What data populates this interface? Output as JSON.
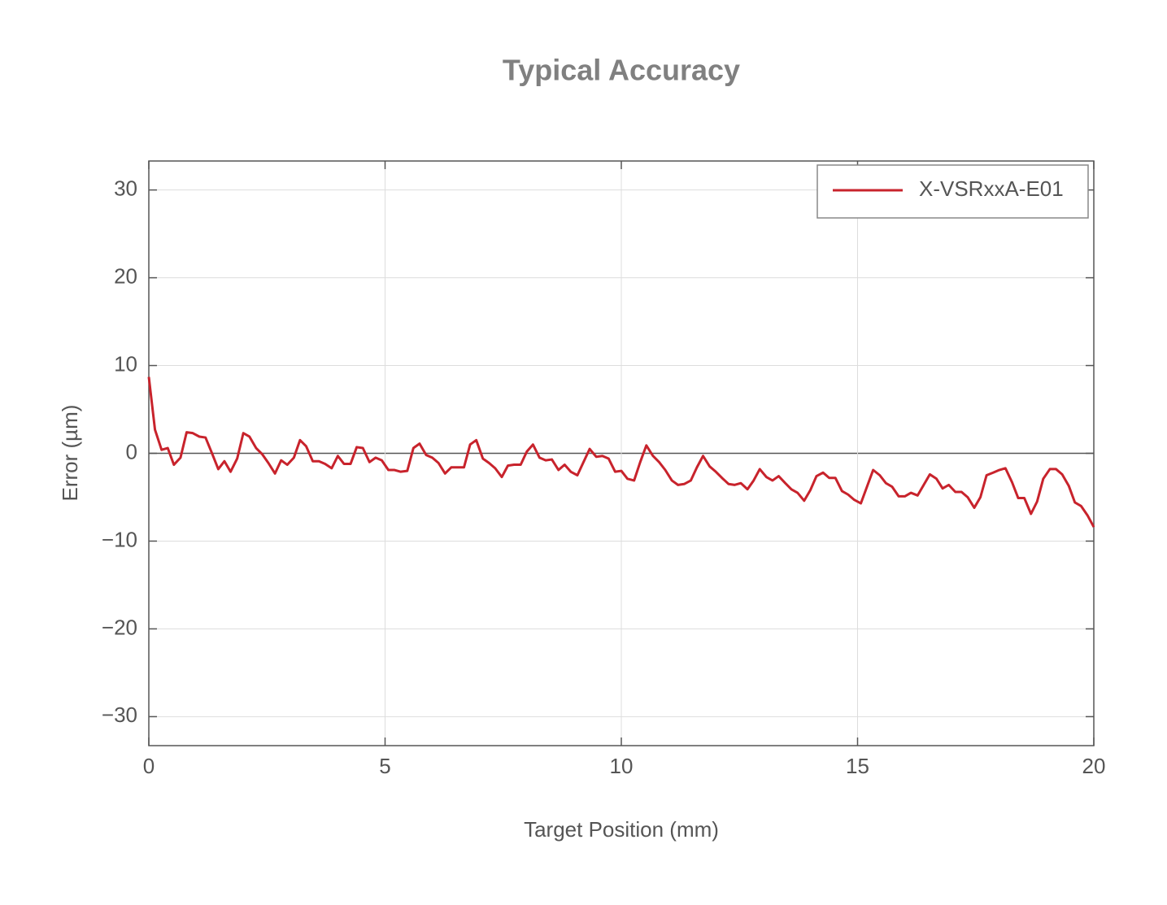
{
  "chart_data": {
    "type": "line",
    "title": "Typical Accuracy",
    "x_label": "Target Position (mm)",
    "y_label": "Error (µm)",
    "xlim": [
      0,
      20
    ],
    "xticks": [
      0,
      5,
      10,
      15,
      20
    ],
    "ylim": [
      -33.3,
      33.3
    ],
    "yticks": [
      {
        "value": -30,
        "label": "−30"
      },
      {
        "value": -20,
        "label": "−20"
      },
      {
        "value": -10,
        "label": "−10"
      },
      0,
      10,
      20,
      30
    ],
    "grid": true,
    "legend": "upper right",
    "x": [
      0,
      0.13,
      0.27,
      0.4,
      0.53,
      0.67,
      0.8,
      0.93,
      1.07,
      1.2,
      1.33,
      1.47,
      1.6,
      1.73,
      1.87,
      2,
      2.13,
      2.27,
      2.4,
      2.53,
      2.67,
      2.8,
      2.93,
      3.07,
      3.2,
      3.33,
      3.47,
      3.6,
      3.73,
      3.87,
      4,
      4.13,
      4.27,
      4.4,
      4.53,
      4.67,
      4.8,
      4.93,
      5.07,
      5.2,
      5.33,
      5.47,
      5.6,
      5.73,
      5.87,
      6,
      6.13,
      6.27,
      6.4,
      6.53,
      6.67,
      6.8,
      6.93,
      7.07,
      7.2,
      7.33,
      7.47,
      7.6,
      7.73,
      7.87,
      8,
      8.13,
      8.27,
      8.4,
      8.53,
      8.67,
      8.8,
      8.93,
      9.07,
      9.2,
      9.33,
      9.47,
      9.6,
      9.73,
      9.87,
      10,
      10.13,
      10.27,
      10.4,
      10.53,
      10.67,
      10.8,
      10.93,
      11.07,
      11.2,
      11.33,
      11.47,
      11.6,
      11.73,
      11.87,
      12,
      12.13,
      12.27,
      12.4,
      12.53,
      12.67,
      12.8,
      12.93,
      13.07,
      13.2,
      13.33,
      13.47,
      13.6,
      13.73,
      13.87,
      14,
      14.13,
      14.27,
      14.4,
      14.53,
      14.67,
      14.8,
      14.93,
      15.07,
      15.2,
      15.33,
      15.47,
      15.6,
      15.73,
      15.87,
      16,
      16.13,
      16.27,
      16.4,
      16.53,
      16.67,
      16.8,
      16.93,
      17.07,
      17.2,
      17.33,
      17.47,
      17.6,
      17.73,
      17.87,
      18,
      18.13,
      18.27,
      18.4,
      18.53,
      18.67,
      18.8,
      18.93,
      19.07,
      19.2,
      19.33,
      19.47,
      19.6,
      19.73,
      19.87,
      20
    ],
    "series": [
      {
        "name": "X-VSRxxA-E01",
        "color": "#c8232c",
        "values": [
          8.7,
          2.7,
          0.4,
          0.6,
          -1.3,
          -0.5,
          2.4,
          2.3,
          1.9,
          1.8,
          0.1,
          -1.8,
          -0.9,
          -2.1,
          -0.6,
          2.3,
          1.9,
          0.6,
          -0.1,
          -1.1,
          -2.3,
          -0.8,
          -1.3,
          -0.5,
          1.5,
          0.8,
          -0.9,
          -0.9,
          -1.2,
          -1.7,
          -0.3,
          -1.2,
          -1.2,
          0.7,
          0.6,
          -1.0,
          -0.5,
          -0.8,
          -1.9,
          -1.9,
          -2.1,
          -2.0,
          0.6,
          1.1,
          -0.2,
          -0.5,
          -1.1,
          -2.3,
          -1.6,
          -1.6,
          -1.6,
          1.0,
          1.5,
          -0.6,
          -1.1,
          -1.7,
          -2.7,
          -1.4,
          -1.3,
          -1.3,
          0.2,
          1.0,
          -0.5,
          -0.8,
          -0.7,
          -1.9,
          -1.3,
          -2.1,
          -2.5,
          -1.0,
          0.5,
          -0.4,
          -0.3,
          -0.6,
          -2.1,
          -2.0,
          -2.9,
          -3.1,
          -1.0,
          0.9,
          -0.3,
          -1.0,
          -1.9,
          -3.1,
          -3.6,
          -3.5,
          -3.1,
          -1.6,
          -0.3,
          -1.5,
          -2.1,
          -2.8,
          -3.5,
          -3.6,
          -3.4,
          -4.1,
          -3.1,
          -1.8,
          -2.7,
          -3.1,
          -2.6,
          -3.4,
          -4.1,
          -4.5,
          -5.4,
          -4.2,
          -2.6,
          -2.2,
          -2.8,
          -2.8,
          -4.3,
          -4.7,
          -5.3,
          -5.7,
          -3.8,
          -1.9,
          -2.5,
          -3.4,
          -3.8,
          -4.9,
          -4.9,
          -4.5,
          -4.8,
          -3.6,
          -2.4,
          -2.9,
          -4.0,
          -3.6,
          -4.4,
          -4.4,
          -5.0,
          -6.2,
          -5.0,
          -2.5,
          -2.2,
          -1.9,
          -1.7,
          -3.3,
          -5.1,
          -5.1,
          -6.9,
          -5.5,
          -2.9,
          -1.8,
          -1.8,
          -2.4,
          -3.7,
          -5.6,
          -6.0,
          -7.1,
          -8.4
        ]
      }
    ]
  }
}
